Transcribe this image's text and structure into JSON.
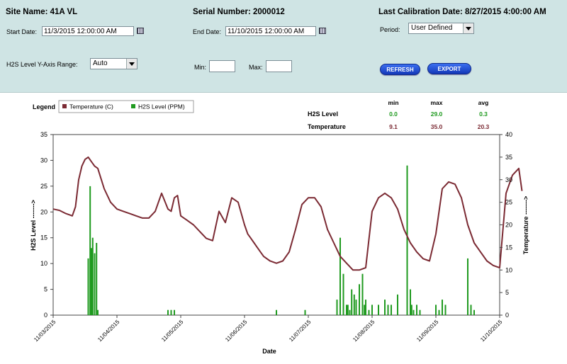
{
  "header": {
    "site_name": "Site Name: 41A VL",
    "serial_number": "Serial Number: 2000012",
    "last_calibration": "Last Calibration Date: 8/27/2015 4:00:00 AM"
  },
  "filters": {
    "start_date_label": "Start Date:",
    "start_date_value": "11/3/2015 12:00:00 AM",
    "end_date_label": "End Date:",
    "end_date_value": "11/10/2015 12:00:00 AM",
    "period_label": "Period:",
    "period_value": "User Defined",
    "range_label": "H2S Level Y-Axis Range:",
    "range_value": "Auto",
    "min_label": "Min:",
    "min_value": "",
    "max_label": "Max:",
    "max_value": ""
  },
  "buttons": {
    "refresh": "REFRESH",
    "export": "EXPORT"
  },
  "colors": {
    "temperature": "#7b2a33",
    "h2s": "#1f9a1f",
    "panel": "#cfe4e4",
    "button": "#1d45d0"
  },
  "chart_data": {
    "type": "line",
    "legend_title": "Legend",
    "legend_position": "top-left",
    "xlabel": "Date",
    "ylabel_left": "H2S Level ------->",
    "ylabel_right": "Temperature ------->",
    "ylim_left": [
      0,
      35
    ],
    "ylim_right": [
      0,
      40
    ],
    "yticks_left": [
      "0",
      "5",
      "10",
      "15",
      "20",
      "25",
      "30",
      "35"
    ],
    "yticks_right": [
      "0",
      "5",
      "10",
      "15",
      "20",
      "25",
      "30",
      "35",
      "40"
    ],
    "x_range": [
      "11/03/2015",
      "11/10/2015"
    ],
    "x_ticks": [
      "11/03/2015",
      "11/04/2015",
      "11/05/2015",
      "11/06/2015",
      "11/07/2015",
      "11/08/2015",
      "11/09/2015",
      "11/10/2015"
    ],
    "grid": false,
    "stats": {
      "headers": [
        "min",
        "max",
        "avg"
      ],
      "rows": [
        {
          "name": "H2S Level",
          "min": "0.0",
          "max": "29.0",
          "avg": "0.3"
        },
        {
          "name": "Temperature",
          "min": "9.1",
          "max": "35.0",
          "avg": "20.3"
        }
      ]
    },
    "series": [
      {
        "name": "Temperature (C)",
        "axis": "right",
        "style": "line",
        "x_days": [
          0,
          0.1,
          0.2,
          0.3,
          0.35,
          0.4,
          0.45,
          0.5,
          0.55,
          0.6,
          0.65,
          0.7,
          0.8,
          0.9,
          1.0,
          1.1,
          1.2,
          1.3,
          1.4,
          1.5,
          1.6,
          1.7,
          1.8,
          1.85,
          1.9,
          1.95,
          2.0,
          2.05,
          2.1,
          2.15,
          2.2,
          2.3,
          2.4,
          2.5,
          2.6,
          2.7,
          2.8,
          2.9,
          3.0,
          3.05,
          3.1,
          3.15,
          3.2,
          3.25,
          3.3,
          3.4,
          3.5,
          3.6,
          3.7,
          3.8,
          3.9,
          4.0,
          4.1,
          4.2,
          4.3,
          4.4,
          4.5,
          4.6,
          4.7,
          4.8,
          4.9,
          5.0,
          5.1,
          5.2,
          5.3,
          5.4,
          5.5,
          5.6,
          5.7,
          5.8,
          5.9,
          6.0,
          6.1,
          6.2,
          6.3,
          6.4,
          6.5,
          6.6,
          6.7,
          6.8,
          6.9,
          7.0,
          7.1,
          7.2,
          7.3,
          7.35
        ],
        "y": [
          23.5,
          23.2,
          22.5,
          22,
          24,
          30,
          33,
          34.5,
          35,
          34,
          33,
          32.5,
          28,
          25,
          23.5,
          23,
          22.5,
          22,
          21.5,
          21.5,
          23,
          27,
          23.5,
          23,
          26,
          26.5,
          22,
          21.5,
          21,
          20.5,
          20,
          18.5,
          17,
          16.5,
          23,
          20.5,
          26,
          25,
          20,
          18,
          17,
          16,
          15,
          14,
          13,
          12,
          11.5,
          12,
          14,
          19,
          24.5,
          26,
          26,
          24,
          19,
          16,
          13,
          11.5,
          10,
          10,
          10.5,
          23,
          26,
          27,
          26,
          23.5,
          19,
          16,
          14,
          12.5,
          12,
          18,
          28,
          29.5,
          29,
          26,
          20,
          16,
          14,
          12,
          11,
          10.5,
          27,
          31,
          32.5,
          27.5
        ]
      },
      {
        "name": "H2S Level (PPM)",
        "axis": "left",
        "style": "bars",
        "x_days": [
          0.55,
          0.58,
          0.6,
          0.62,
          0.65,
          0.68,
          0.7,
          1.8,
          1.85,
          1.9,
          3.5,
          3.95,
          4.45,
          4.5,
          4.55,
          4.6,
          4.62,
          4.65,
          4.68,
          4.72,
          4.75,
          4.8,
          4.85,
          4.88,
          4.9,
          4.95,
          5.0,
          5.1,
          5.2,
          5.25,
          5.3,
          5.4,
          5.55,
          5.6,
          5.62,
          5.65,
          5.7,
          5.75,
          6.0,
          6.05,
          6.1,
          6.15,
          6.5,
          6.55,
          6.6
        ],
        "values": [
          11,
          25,
          13,
          15,
          12,
          14,
          1,
          1,
          1,
          1,
          1,
          1,
          3,
          15,
          8,
          2,
          2,
          1,
          5,
          4,
          3,
          6,
          8,
          2,
          3,
          1,
          2,
          2,
          3,
          2,
          2,
          4,
          29,
          5,
          2,
          1,
          2,
          1,
          2,
          1,
          3,
          2,
          11,
          2,
          1
        ]
      }
    ]
  }
}
